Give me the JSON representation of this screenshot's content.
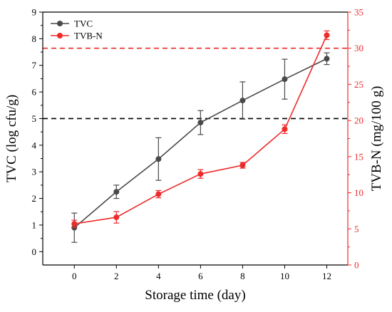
{
  "chart_data": {
    "type": "line",
    "xlabel": "Storage time (day)",
    "x": [
      0,
      2,
      4,
      6,
      8,
      10,
      12
    ],
    "xlim": [
      -1.5,
      13
    ],
    "xticks": [
      0,
      2,
      4,
      6,
      8,
      10,
      12
    ],
    "y_left": {
      "label": "TVC (log cfu/g)",
      "lim": [
        -0.5,
        9
      ],
      "ticks": [
        0,
        1,
        2,
        3,
        4,
        5,
        6,
        7,
        8,
        9
      ],
      "color": "#000000"
    },
    "y_right": {
      "label": "TVB-N (mg/100 g)",
      "lim": [
        0,
        35
      ],
      "ticks": [
        0,
        5,
        10,
        15,
        20,
        25,
        30,
        35
      ],
      "color": "#ee2a2a"
    },
    "series": [
      {
        "name": "TVC",
        "axis": "left",
        "color": "#4a4a4a",
        "values": [
          0.9,
          2.25,
          3.48,
          4.85,
          5.68,
          6.48,
          7.25
        ],
        "errors": [
          0.55,
          0.25,
          0.8,
          0.45,
          0.7,
          0.75,
          0.22
        ]
      },
      {
        "name": "TVB-N",
        "axis": "right",
        "color": "#ee2a2a",
        "values": [
          5.7,
          6.6,
          9.8,
          12.6,
          13.8,
          18.8,
          31.8
        ],
        "errors": [
          0.5,
          0.8,
          0.5,
          0.6,
          0.4,
          0.6,
          0.6
        ]
      }
    ],
    "reference_lines": [
      {
        "axis": "left",
        "value": 5,
        "color": "#000000",
        "style": "dashed"
      },
      {
        "axis": "right",
        "value": 30,
        "color": "#ee2a2a",
        "style": "dashed"
      }
    ],
    "legend_position": "top-left",
    "grid": false
  }
}
